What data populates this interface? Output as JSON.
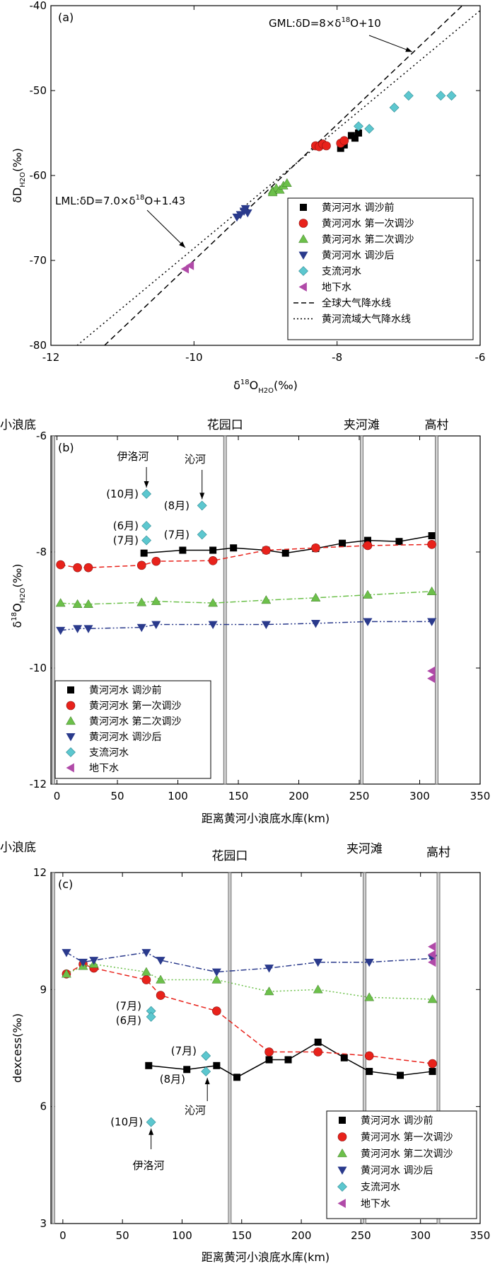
{
  "chart_data": [
    {
      "type": "scatter",
      "panel_label": "(a)",
      "ylabel": "δD",
      "ylabel_sub": "H2O",
      "ylabel_unit": "(‰)",
      "xlabel": "δ",
      "xlabel_sup": "18",
      "xlabel_rest": "O",
      "xlabel_sub": "H2O",
      "xlabel_unit": "(‰)",
      "xlim": [
        -12,
        -6
      ],
      "ylim": [
        -80,
        -40
      ],
      "xticks": [
        -12,
        -10,
        -8,
        -6
      ],
      "yticks": [
        -80,
        -70,
        -60,
        -50,
        -40
      ],
      "series": [
        {
          "name": "黄河河水 调沙前",
          "marker": "square",
          "color": "#000000",
          "points": [
            [
              -7.95,
              -56.8
            ],
            [
              -7.9,
              -56.4
            ],
            [
              -7.75,
              -55.6
            ],
            [
              -7.7,
              -55.0
            ],
            [
              -7.8,
              -55.3
            ]
          ]
        },
        {
          "name": "黄河河水 第一次调沙",
          "marker": "circle",
          "color": "#e8221b",
          "points": [
            [
              -8.3,
              -56.5
            ],
            [
              -8.25,
              -56.6
            ],
            [
              -8.2,
              -56.3
            ],
            [
              -8.15,
              -56.5
            ],
            [
              -7.95,
              -56.2
            ],
            [
              -7.9,
              -55.9
            ]
          ]
        },
        {
          "name": "黄河河水 第二次调沙",
          "marker": "triangle-up",
          "color": "#6cc04a",
          "points": [
            [
              -8.9,
              -61.8
            ],
            [
              -8.85,
              -61.5
            ],
            [
              -8.8,
              -61.7
            ],
            [
              -8.75,
              -61.2
            ],
            [
              -8.7,
              -60.9
            ],
            [
              -8.9,
              -62.0
            ]
          ]
        },
        {
          "name": "黄河河水 调沙后",
          "marker": "triangle-down",
          "color": "#2a3a8c",
          "points": [
            [
              -9.4,
              -64.9
            ],
            [
              -9.35,
              -64.6
            ],
            [
              -9.3,
              -64.2
            ],
            [
              -9.28,
              -63.9
            ],
            [
              -9.25,
              -64.4
            ]
          ]
        },
        {
          "name": "支流河水",
          "marker": "diamond",
          "color": "#5cc7cf",
          "points": [
            [
              -7.7,
              -54.2
            ],
            [
              -7.55,
              -54.5
            ],
            [
              -7.2,
              -52.0
            ],
            [
              -7.0,
              -50.6
            ],
            [
              -6.55,
              -50.6
            ],
            [
              -6.4,
              -50.6
            ]
          ]
        },
        {
          "name": "地下水",
          "marker": "triangle-left",
          "color": "#b04aa8",
          "points": [
            [
              -10.12,
              -71.0
            ],
            [
              -10.05,
              -70.6
            ]
          ]
        }
      ],
      "lines": [
        {
          "name": "全球大气降水线",
          "style": "dashed",
          "slope": 8,
          "intercept": 10
        },
        {
          "name": "黄河流域大气降水线",
          "style": "dotted",
          "slope": 7.0,
          "intercept": 1.43
        }
      ],
      "annotations": [
        {
          "text": "GML:δD=8×δ",
          "sup": "18",
          "rest": "O+10"
        },
        {
          "text": "LML:δD=7.0×δ",
          "sup": "18",
          "rest": "O+1.43"
        }
      ],
      "legend_position": "bottom-right"
    },
    {
      "type": "line",
      "panel_label": "(b)",
      "ylabel": "δ",
      "ylabel_sup": "18",
      "ylabel_rest": "O",
      "ylabel_sub": "H2O",
      "ylabel_unit": "(‰)",
      "xlabel": "距离黄河小浪底水库(km)",
      "xlim": [
        -5,
        350
      ],
      "ylim": [
        -12,
        -6
      ],
      "xticks": [
        0,
        50,
        100,
        150,
        200,
        250,
        300,
        350
      ],
      "yticks": [
        -12,
        -10,
        -8,
        -6
      ],
      "stations": [
        {
          "name": "小浪底",
          "x": -3
        },
        {
          "name": "花园口",
          "x": 139
        },
        {
          "name": "夹河滩",
          "x": 252
        },
        {
          "name": "高村",
          "x": 314
        }
      ],
      "series": [
        {
          "name": "黄河河水 调沙前",
          "marker": "square",
          "color": "#000000",
          "line": "solid",
          "points": [
            [
              72,
              -8.02
            ],
            [
              104,
              -7.97
            ],
            [
              129,
              -7.97
            ],
            [
              146,
              -7.93
            ],
            [
              173,
              -7.97
            ],
            [
              189,
              -8.02
            ],
            [
              214,
              -7.94
            ],
            [
              236,
              -7.85
            ],
            [
              257,
              -7.8
            ],
            [
              283,
              -7.82
            ],
            [
              310,
              -7.72
            ]
          ]
        },
        {
          "name": "黄河河水 第一次调沙",
          "marker": "circle",
          "color": "#e8221b",
          "line": "dashed",
          "points": [
            [
              3,
              -8.22
            ],
            [
              17,
              -8.27
            ],
            [
              26,
              -8.27
            ],
            [
              70,
              -8.23
            ],
            [
              82,
              -8.16
            ],
            [
              129,
              -8.15
            ],
            [
              173,
              -7.97
            ],
            [
              214,
              -7.93
            ],
            [
              257,
              -7.89
            ],
            [
              310,
              -7.87
            ]
          ]
        },
        {
          "name": "黄河河水 第二次调沙",
          "marker": "triangle-up",
          "color": "#6cc04a",
          "line": "dashdot",
          "points": [
            [
              3,
              -8.88
            ],
            [
              17,
              -8.9
            ],
            [
              26,
              -8.9
            ],
            [
              70,
              -8.87
            ],
            [
              82,
              -8.85
            ],
            [
              129,
              -8.88
            ],
            [
              173,
              -8.83
            ],
            [
              214,
              -8.79
            ],
            [
              257,
              -8.74
            ],
            [
              310,
              -8.68
            ]
          ]
        },
        {
          "name": "黄河河水 调沙后",
          "marker": "triangle-down",
          "color": "#2a3a8c",
          "line": "dashdotdot",
          "points": [
            [
              3,
              -9.35
            ],
            [
              17,
              -9.32
            ],
            [
              26,
              -9.32
            ],
            [
              70,
              -9.3
            ],
            [
              82,
              -9.25
            ],
            [
              129,
              -9.25
            ],
            [
              173,
              -9.25
            ],
            [
              214,
              -9.23
            ],
            [
              257,
              -9.2
            ],
            [
              310,
              -9.2
            ]
          ]
        },
        {
          "name": "支流河水",
          "marker": "diamond",
          "color": "#5cc7cf",
          "line": "none",
          "points": [
            [
              74,
              -7.0
            ],
            [
              74,
              -7.55
            ],
            [
              74,
              -7.8
            ],
            [
              120,
              -7.2
            ],
            [
              120,
              -7.7
            ]
          ]
        },
        {
          "name": "地下水",
          "marker": "triangle-left",
          "color": "#b04aa8",
          "line": "none",
          "points": [
            [
              310,
              -10.05
            ],
            [
              310,
              -10.18
            ]
          ]
        }
      ],
      "annotations": [
        {
          "text": "伊洛河",
          "arrow_to": [
            74,
            -7.0
          ]
        },
        {
          "text": "沁河",
          "arrow_to": [
            120,
            -7.2
          ]
        },
        {
          "text": "(10月)",
          "near": [
            74,
            -7.0
          ]
        },
        {
          "text": "(8月)",
          "near": [
            120,
            -7.2
          ]
        },
        {
          "text": "(6月)",
          "near": [
            74,
            -7.55
          ]
        },
        {
          "text": "(7月)",
          "near": [
            74,
            -7.8
          ]
        },
        {
          "text": "(7月)",
          "near": [
            120,
            -7.7
          ]
        }
      ],
      "legend_position": "bottom-left"
    },
    {
      "type": "line",
      "panel_label": "(c)",
      "ylabel": "dexcess(‰)",
      "xlabel": "距离黄河小浪底水库(km)",
      "xlim": [
        -10,
        350
      ],
      "ylim": [
        3,
        12
      ],
      "xticks": [
        0,
        50,
        100,
        150,
        200,
        250,
        300,
        350
      ],
      "yticks": [
        3,
        6,
        9,
        12
      ],
      "stations": [
        {
          "name": "小浪底",
          "x": -8
        },
        {
          "name": "花园口",
          "x": 140
        },
        {
          "name": "夹河滩",
          "x": 253
        },
        {
          "name": "高村",
          "x": 315
        }
      ],
      "series": [
        {
          "name": "黄河河水 调沙前",
          "marker": "square",
          "color": "#000000",
          "line": "solid",
          "points": [
            [
              72,
              7.05
            ],
            [
              104,
              6.95
            ],
            [
              129,
              7.05
            ],
            [
              146,
              6.75
            ],
            [
              173,
              7.2
            ],
            [
              189,
              7.2
            ],
            [
              214,
              7.65
            ],
            [
              236,
              7.25
            ],
            [
              257,
              6.9
            ],
            [
              283,
              6.8
            ],
            [
              310,
              6.9
            ]
          ]
        },
        {
          "name": "黄河河水 第一次调沙",
          "marker": "circle",
          "color": "#e8221b",
          "line": "dashed",
          "points": [
            [
              3,
              9.4
            ],
            [
              17,
              9.65
            ],
            [
              26,
              9.55
            ],
            [
              70,
              9.25
            ],
            [
              82,
              8.85
            ],
            [
              129,
              8.45
            ],
            [
              173,
              7.4
            ],
            [
              214,
              7.4
            ],
            [
              257,
              7.3
            ],
            [
              310,
              7.1
            ]
          ]
        },
        {
          "name": "黄河河水 第二次调沙",
          "marker": "triangle-up",
          "color": "#6cc04a",
          "line": "dotted",
          "points": [
            [
              3,
              9.4
            ],
            [
              17,
              9.6
            ],
            [
              26,
              9.65
            ],
            [
              70,
              9.45
            ],
            [
              82,
              9.25
            ],
            [
              129,
              9.25
            ],
            [
              173,
              8.95
            ],
            [
              214,
              9.0
            ],
            [
              257,
              8.8
            ],
            [
              310,
              8.75
            ]
          ]
        },
        {
          "name": "黄河河水 调沙后",
          "marker": "triangle-down",
          "color": "#2a3a8c",
          "line": "dashdot",
          "points": [
            [
              3,
              9.95
            ],
            [
              17,
              9.7
            ],
            [
              26,
              9.75
            ],
            [
              70,
              9.95
            ],
            [
              82,
              9.75
            ],
            [
              129,
              9.45
            ],
            [
              173,
              9.55
            ],
            [
              214,
              9.7
            ],
            [
              257,
              9.7
            ],
            [
              310,
              9.8
            ]
          ]
        },
        {
          "name": "支流河水",
          "marker": "diamond",
          "color": "#5cc7cf",
          "line": "none",
          "points": [
            [
              74,
              8.45
            ],
            [
              74,
              8.3
            ],
            [
              120,
              7.3
            ],
            [
              120,
              6.9
            ],
            [
              74,
              5.6
            ]
          ]
        },
        {
          "name": "地下水",
          "marker": "triangle-left",
          "color": "#b04aa8",
          "line": "none",
          "points": [
            [
              310,
              10.1
            ],
            [
              310,
              9.9
            ],
            [
              310,
              9.7
            ]
          ]
        }
      ],
      "annotations": [
        {
          "text": "(7月)",
          "near": [
            74,
            8.45
          ]
        },
        {
          "text": "(6月)",
          "near": [
            74,
            8.3
          ]
        },
        {
          "text": "(7月)",
          "near": [
            120,
            7.3
          ]
        },
        {
          "text": "(8月)",
          "near": [
            120,
            6.9
          ]
        },
        {
          "text": "沁河",
          "arrow_to": [
            120,
            6.9
          ]
        },
        {
          "text": "(10月)",
          "near": [
            74,
            5.6
          ]
        },
        {
          "text": "伊洛河",
          "arrow_to": [
            74,
            5.6
          ]
        }
      ],
      "legend_position": "bottom-right"
    }
  ]
}
